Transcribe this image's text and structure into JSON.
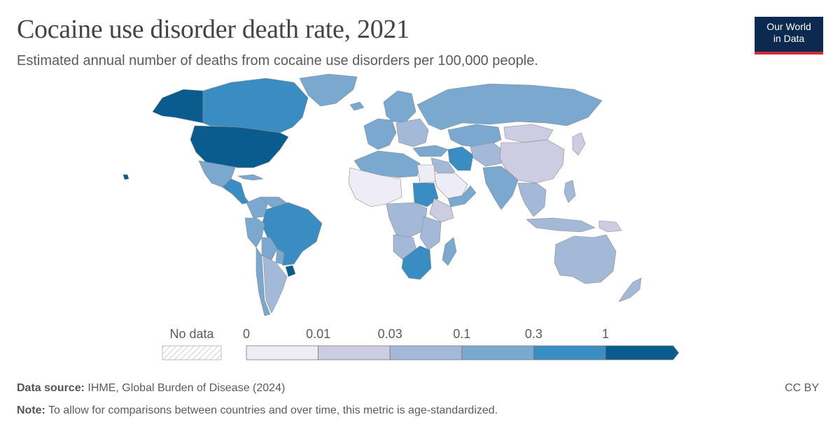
{
  "header": {
    "title": "Cocaine use disorder death rate, 2021",
    "subtitle": "Estimated annual number of deaths from cocaine use disorders per 100,000 people."
  },
  "logo": {
    "line1": "Our World",
    "line2": "in Data"
  },
  "legend": {
    "no_data_label": "No data",
    "ticks": [
      "0",
      "0.01",
      "0.03",
      "0.1",
      "0.3",
      "1"
    ],
    "bins": [
      {
        "from": 0,
        "to": 0.01,
        "color": "#eeecf5"
      },
      {
        "from": 0.01,
        "to": 0.03,
        "color": "#ccccE3"
      },
      {
        "from": 0.03,
        "to": 0.1,
        "color": "#a4b8d8"
      },
      {
        "from": 0.1,
        "to": 0.3,
        "color": "#7aa8cf"
      },
      {
        "from": 0.3,
        "to": 1,
        "color": "#3a8dc1"
      },
      {
        "from": 1,
        "to": null,
        "color": "#0b5c8e"
      }
    ]
  },
  "map_regions": [
    {
      "name": "united-states",
      "bin": 5
    },
    {
      "name": "alaska",
      "bin": 5
    },
    {
      "name": "hawaii",
      "bin": 5
    },
    {
      "name": "canada",
      "bin": 4
    },
    {
      "name": "greenland",
      "bin": 3
    },
    {
      "name": "mexico",
      "bin": 3
    },
    {
      "name": "central-america",
      "bin": 4
    },
    {
      "name": "cuba",
      "bin": 3
    },
    {
      "name": "colombia",
      "bin": 3
    },
    {
      "name": "venezuela",
      "bin": 3
    },
    {
      "name": "brazil",
      "bin": 4
    },
    {
      "name": "peru",
      "bin": 3
    },
    {
      "name": "bolivia",
      "bin": 3
    },
    {
      "name": "paraguay",
      "bin": 3
    },
    {
      "name": "uruguay",
      "bin": 5
    },
    {
      "name": "chile",
      "bin": 3
    },
    {
      "name": "argentina",
      "bin": 2
    },
    {
      "name": "iceland",
      "bin": 3
    },
    {
      "name": "western-europe",
      "bin": 3
    },
    {
      "name": "scandinavia",
      "bin": 3
    },
    {
      "name": "eastern-europe",
      "bin": 2
    },
    {
      "name": "russia",
      "bin": 3
    },
    {
      "name": "kazakhstan",
      "bin": 3
    },
    {
      "name": "turkey",
      "bin": 3
    },
    {
      "name": "iran",
      "bin": 4
    },
    {
      "name": "middle-east",
      "bin": 2
    },
    {
      "name": "saudi-arabia",
      "bin": 0
    },
    {
      "name": "yemen-oman",
      "bin": 3
    },
    {
      "name": "north-africa",
      "bin": 3
    },
    {
      "name": "egypt",
      "bin": 0
    },
    {
      "name": "west-africa",
      "bin": 0
    },
    {
      "name": "sudan",
      "bin": 4
    },
    {
      "name": "ethiopia",
      "bin": 1
    },
    {
      "name": "central-africa",
      "bin": 2
    },
    {
      "name": "east-africa",
      "bin": 2
    },
    {
      "name": "angola",
      "bin": 2
    },
    {
      "name": "southern-africa",
      "bin": 4
    },
    {
      "name": "madagascar",
      "bin": 3
    },
    {
      "name": "central-asia",
      "bin": 2
    },
    {
      "name": "mongolia",
      "bin": 1
    },
    {
      "name": "china",
      "bin": 1
    },
    {
      "name": "india",
      "bin": 3
    },
    {
      "name": "southeast-asia",
      "bin": 2
    },
    {
      "name": "japan",
      "bin": 1
    },
    {
      "name": "indonesia",
      "bin": 2
    },
    {
      "name": "philippines",
      "bin": 2
    },
    {
      "name": "papua-new-guinea",
      "bin": 1
    },
    {
      "name": "australia",
      "bin": 2
    },
    {
      "name": "new-zealand",
      "bin": 2
    }
  ],
  "footer": {
    "source_label": "Data source:",
    "source_text": "IHME, Global Burden of Disease (2024)",
    "note_label": "Note:",
    "note_text": "To allow for comparisons between countries and over time, this metric is age-standardized.",
    "license": "CC BY"
  }
}
